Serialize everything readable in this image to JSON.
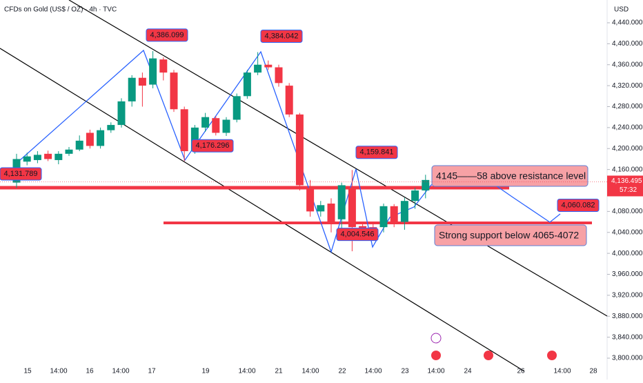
{
  "chart_data": {
    "type": "candlestick",
    "title": "CFDs on Gold (US$ / OZ) · 4h · TVC",
    "currency": "USD",
    "up_color": "#089981",
    "down_color": "#f23645",
    "open": [
      4135,
      4175,
      4178,
      4190,
      4178,
      4190,
      4198,
      4230,
      4205,
      4235,
      4245,
      4290,
      4335,
      4322,
      4370,
      4345,
      4275,
      4195,
      4240,
      4258,
      4230,
      4255,
      4300,
      4345,
      4360,
      4355,
      4320,
      4265,
      4125,
      4080,
      4095,
      4065,
      4125,
      4052,
      4050,
      4050,
      4090,
      4060,
      4100,
      4120
    ],
    "high": [
      4190,
      4192,
      4195,
      4196,
      4195,
      4203,
      4225,
      4236,
      4240,
      4250,
      4296,
      4340,
      4345,
      4386,
      4374,
      4350,
      4280,
      4245,
      4268,
      4262,
      4260,
      4305,
      4350,
      4384,
      4368,
      4360,
      4325,
      4268,
      4140,
      4100,
      4105,
      4135,
      4159,
      4060,
      4056,
      4095,
      4094,
      4106,
      4125,
      4150
    ],
    "low": [
      4125,
      4168,
      4172,
      4176,
      4170,
      4186,
      4195,
      4200,
      4200,
      4230,
      4240,
      4280,
      4280,
      4315,
      4330,
      4270,
      4176,
      4190,
      4232,
      4225,
      4224,
      4250,
      4295,
      4340,
      4350,
      4318,
      4260,
      4120,
      4070,
      4070,
      4040,
      4030,
      4004,
      4030,
      4030,
      4040,
      4050,
      4045,
      4085,
      4105
    ],
    "close": [
      4180,
      4185,
      4188,
      4180,
      4190,
      4198,
      4215,
      4205,
      4235,
      4245,
      4290,
      4335,
      4320,
      4372,
      4345,
      4275,
      4195,
      4240,
      4260,
      4230,
      4255,
      4300,
      4345,
      4360,
      4355,
      4325,
      4265,
      4130,
      4080,
      4092,
      4060,
      4130,
      4050,
      4048,
      4046,
      4090,
      4060,
      4100,
      4120,
      4140
    ],
    "ylim": [
      3800,
      4440
    ],
    "yticks": [
      {
        "value": 3800,
        "label": "3,800.000"
      },
      {
        "value": 3840,
        "label": "3,840.000"
      },
      {
        "value": 3880,
        "label": "3,880.000"
      },
      {
        "value": 3920,
        "label": "3,920.000"
      },
      {
        "value": 3960,
        "label": "3,960.000"
      },
      {
        "value": 4000,
        "label": "4,000.000"
      },
      {
        "value": 4040,
        "label": "4,040.000"
      },
      {
        "value": 4080,
        "label": "4,080.000"
      },
      {
        "value": 4120,
        "label": "4,120.000"
      },
      {
        "value": 4160,
        "label": "4,160.000"
      },
      {
        "value": 4200,
        "label": "4,200.000"
      },
      {
        "value": 4240,
        "label": "4,240.000"
      },
      {
        "value": 4280,
        "label": "4,280.000"
      },
      {
        "value": 4320,
        "label": "4,320.000"
      },
      {
        "value": 4360,
        "label": "4,360.000"
      },
      {
        "value": 4400,
        "label": "4,400.000"
      },
      {
        "value": 4440,
        "label": "4,440.000"
      }
    ],
    "xtick_labels": [
      "15",
      "14:00",
      "16",
      "14:00",
      "17",
      "19",
      "14:00",
      "21",
      "14:00",
      "22",
      "14:00",
      "23",
      "14:00",
      "24",
      "26",
      "14:00",
      "28"
    ],
    "current_price": {
      "value": 4136.495,
      "label": "4,136.495"
    },
    "countdown": "57:32",
    "price_labels": [
      {
        "value": 4386.099,
        "label": "4,386.099"
      },
      {
        "value": 4384.042,
        "label": "4,384.042"
      },
      {
        "value": 4176.296,
        "label": "4,176.296"
      },
      {
        "value": 4159.841,
        "label": "4,159.841"
      },
      {
        "value": 4004.546,
        "label": "4,004.546"
      },
      {
        "value": 4060.082,
        "label": "4,060.082"
      },
      {
        "value": 4131.789,
        "label": "4,131.789"
      }
    ],
    "annotations": [
      "4145——58 above resistance level",
      "Strong support below 4065-4072"
    ]
  }
}
